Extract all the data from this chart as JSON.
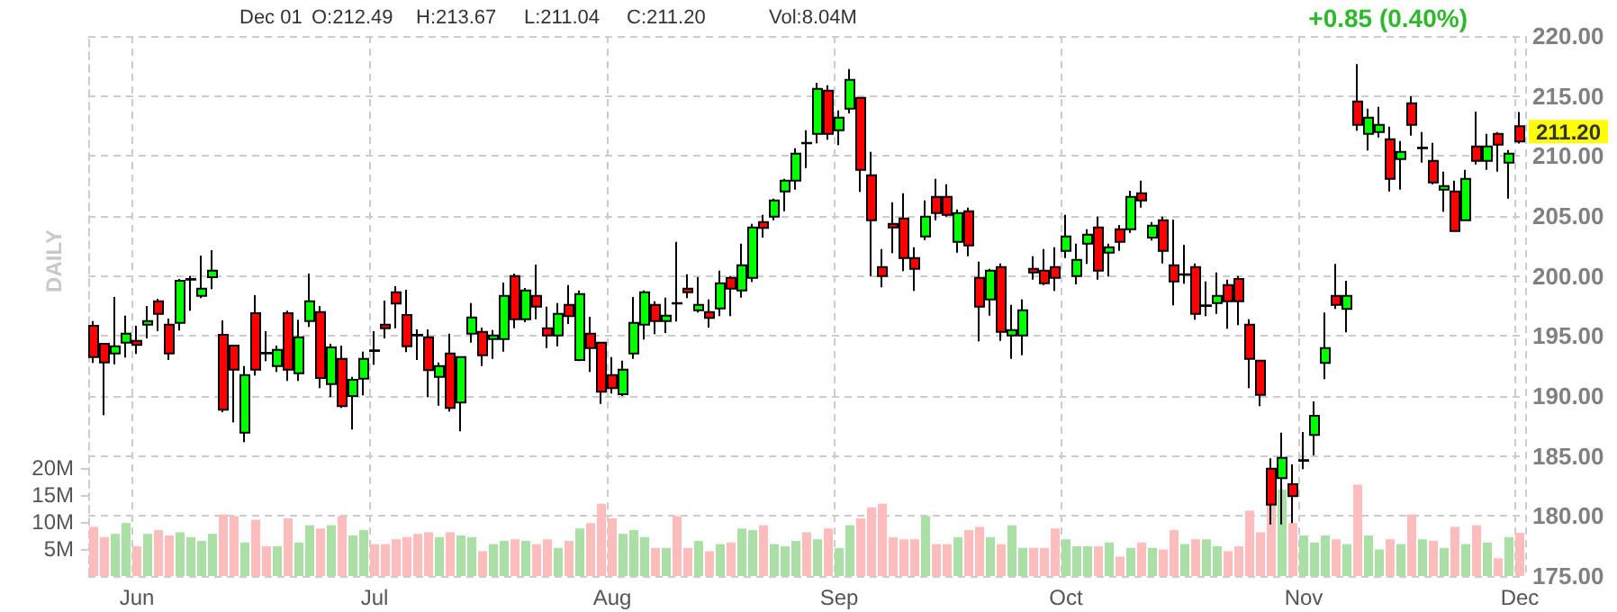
{
  "chart_data": {
    "type": "candlestick",
    "categories": [
      null,
      null,
      null,
      null,
      "Jun",
      null,
      null,
      null,
      null,
      null,
      null,
      null,
      null,
      null,
      null,
      null,
      null,
      null,
      null,
      null,
      null,
      null,
      null,
      null,
      null,
      null,
      "Jul",
      null,
      null,
      null,
      null,
      null,
      null,
      null,
      null,
      null,
      null,
      null,
      null,
      null,
      null,
      null,
      null,
      null,
      null,
      null,
      null,
      null,
      "Aug",
      null,
      null,
      null,
      null,
      null,
      null,
      null,
      null,
      null,
      null,
      null,
      null,
      null,
      null,
      null,
      null,
      null,
      null,
      null,
      null,
      "Sep",
      null,
      null,
      null,
      null,
      null,
      null,
      null,
      null,
      null,
      null,
      null,
      null,
      null,
      null,
      null,
      null,
      null,
      null,
      null,
      null,
      "Oct",
      null,
      null,
      null,
      null,
      null,
      null,
      null,
      null,
      null,
      null,
      null,
      null,
      null,
      null,
      null,
      null,
      null,
      null,
      null,
      null,
      null,
      "Nov",
      null,
      null,
      null,
      null,
      null,
      null,
      null,
      null,
      null,
      null,
      null,
      null,
      null,
      null,
      null,
      null,
      null,
      null,
      null,
      "Dec"
    ],
    "series": [
      {
        "ohlc": [
          [
            195.85,
            196.25,
            192.75,
            193.25
          ],
          [
            194.35,
            194.35,
            188.4,
            192.8
          ],
          [
            193.55,
            198.25,
            192.65,
            194.15
          ],
          [
            194.45,
            196.7,
            193.2,
            195.2
          ],
          [
            194.6,
            195.85,
            193.5,
            194.25
          ],
          [
            195.95,
            197.5,
            194.8,
            196.25
          ],
          [
            197.9,
            198.1,
            195.4,
            196.85
          ],
          [
            195.95,
            196.45,
            193,
            193.55
          ],
          [
            196.1,
            199.75,
            195.45,
            199.6
          ],
          [
            199.7,
            200,
            197.1,
            199.75
          ],
          [
            198.35,
            201.7,
            198.15,
            198.95
          ],
          [
            199.9,
            202.15,
            198.9,
            200.45
          ],
          [
            195.1,
            196.3,
            188.65,
            188.85
          ],
          [
            194.2,
            194.2,
            187.8,
            192.2
          ],
          [
            186.95,
            192.5,
            186.15,
            191.75
          ],
          [
            196.9,
            198.4,
            191.7,
            192.2
          ],
          [
            193.6,
            195.4,
            192.9,
            193.55
          ],
          [
            192.5,
            194.2,
            192,
            193.85
          ],
          [
            196.9,
            197.1,
            191.25,
            192.2
          ],
          [
            191.9,
            196.35,
            191.25,
            194.9
          ],
          [
            196.25,
            200.2,
            195.75,
            197.9
          ],
          [
            197,
            197.5,
            190.65,
            191.5
          ],
          [
            191,
            194.35,
            189.9,
            194.05
          ],
          [
            193.1,
            194.2,
            189,
            189.15
          ],
          [
            190,
            191.6,
            187.2,
            191.35
          ],
          [
            191.45,
            193.7,
            190.05,
            193.1
          ],
          [
            193.8,
            195.4,
            192.6,
            193.75
          ],
          [
            195.95,
            197.95,
            194.8,
            195.65
          ],
          [
            198.65,
            199.15,
            195.65,
            197.7
          ],
          [
            196.75,
            198.85,
            193.65,
            194.15
          ],
          [
            195.1,
            195.55,
            193,
            195.05
          ],
          [
            194.9,
            195.55,
            189.9,
            192.15
          ],
          [
            191.6,
            192.8,
            189.2,
            192.5
          ],
          [
            193.55,
            195.2,
            188.7,
            189
          ],
          [
            189.45,
            193.25,
            187.05,
            193.25
          ],
          [
            195.2,
            197.75,
            194.45,
            196.55
          ],
          [
            195.35,
            195.7,
            192.5,
            193.4
          ],
          [
            194.75,
            195.5,
            193.1,
            195.05
          ],
          [
            194.75,
            199.45,
            193.7,
            198.35
          ],
          [
            200,
            200.2,
            195.65,
            196.4
          ],
          [
            196.4,
            199,
            196.15,
            198.8
          ],
          [
            198.35,
            200.95,
            196.4,
            197.45
          ],
          [
            195.65,
            197.45,
            194,
            195.05
          ],
          [
            195.05,
            197.75,
            194.15,
            196.85
          ],
          [
            197.6,
            199.25,
            196,
            196.65
          ],
          [
            193,
            198.8,
            192.9,
            198.5
          ],
          [
            195.2,
            196.6,
            192,
            194
          ],
          [
            194.45,
            194.45,
            189.35,
            190.35
          ],
          [
            191.75,
            193.25,
            190.2,
            190.65
          ],
          [
            190.15,
            192.95,
            190,
            192.2
          ],
          [
            193.55,
            198.25,
            193.1,
            196.1
          ],
          [
            195.95,
            198.8,
            194.7,
            198.65
          ],
          [
            197.6,
            197.9,
            195.15,
            196.25
          ],
          [
            196.25,
            198.2,
            195.25,
            196.7
          ],
          [
            197.75,
            202.85,
            196.2,
            197.7
          ],
          [
            198.95,
            200.15,
            198.15,
            198.65
          ],
          [
            197.15,
            199.9,
            196.95,
            197.6
          ],
          [
            197,
            198.05,
            195.7,
            196.5
          ],
          [
            197.3,
            200.45,
            196.65,
            199.4
          ],
          [
            199.85,
            200,
            196.65,
            198.95
          ],
          [
            198.8,
            202.7,
            198.2,
            200.9
          ],
          [
            199.85,
            204.35,
            199.5,
            204.05
          ],
          [
            204.5,
            205.1,
            203.2,
            204
          ],
          [
            204.95,
            206.45,
            204.65,
            206.3
          ],
          [
            207.05,
            208.1,
            205.4,
            207.95
          ],
          [
            207.95,
            210.65,
            207.2,
            210.2
          ],
          [
            211.1,
            212.15,
            209,
            211.05
          ],
          [
            211.85,
            216.1,
            211.05,
            215.6
          ],
          [
            215.45,
            215.9,
            211.35,
            211.85
          ],
          [
            212.15,
            213.8,
            210.9,
            213.2
          ],
          [
            213.95,
            217.25,
            213.55,
            216.35
          ],
          [
            214.85,
            214.85,
            207,
            208.85
          ],
          [
            208.4,
            210.35,
            200,
            204.65
          ],
          [
            200.75,
            202.25,
            199.05,
            200
          ],
          [
            204.35,
            206.15,
            201.9,
            204.05
          ],
          [
            204.8,
            206.9,
            200.4,
            201.5
          ],
          [
            201.5,
            202.4,
            198.75,
            200.6
          ],
          [
            203.3,
            206.3,
            203,
            204.95
          ],
          [
            206.6,
            208.1,
            204.65,
            205.25
          ],
          [
            206.6,
            207.65,
            204.95,
            205.1
          ],
          [
            202.85,
            205.55,
            201.95,
            205.25
          ],
          [
            205.4,
            205.7,
            201.65,
            202.55
          ],
          [
            199.85,
            201.2,
            194.55,
            197.45
          ],
          [
            198.05,
            200.6,
            196.7,
            200.45
          ],
          [
            200.75,
            201.05,
            194.6,
            195.35
          ],
          [
            195.05,
            197.6,
            193.1,
            195.5
          ],
          [
            195.05,
            198.05,
            193.4,
            197.15
          ],
          [
            200.6,
            201.65,
            199.7,
            200.3
          ],
          [
            200.45,
            202.25,
            199.25,
            199.4
          ],
          [
            200.75,
            202.4,
            198.75,
            199.85
          ],
          [
            202.1,
            205.1,
            201.5,
            203.3
          ],
          [
            200,
            202.7,
            199.3,
            201.35
          ],
          [
            202.7,
            203.9,
            201,
            203.45
          ],
          [
            204.05,
            204.95,
            199.7,
            200.45
          ],
          [
            201.95,
            202.7,
            199.95,
            202.4
          ],
          [
            203.9,
            204.25,
            202.1,
            202.85
          ],
          [
            203.9,
            207.1,
            203.6,
            206.6
          ],
          [
            206.9,
            207.95,
            205.7,
            206.3
          ],
          [
            203.2,
            204.5,
            202.95,
            204.2
          ],
          [
            204.65,
            204.95,
            201.05,
            202.1
          ],
          [
            200.9,
            204.7,
            197.55,
            199.55
          ],
          [
            200.1,
            202.6,
            199.35,
            200.15
          ],
          [
            200.75,
            201.05,
            196.35,
            196.85
          ],
          [
            197.5,
            199.55,
            196.65,
            197.55
          ],
          [
            197.75,
            200.3,
            196.85,
            198.35
          ],
          [
            199.25,
            199.7,
            195.6,
            197.9
          ],
          [
            199.75,
            200,
            195.9,
            197.9
          ],
          [
            195.95,
            196.4,
            190.65,
            193.1
          ],
          [
            192.95,
            192.95,
            189.15,
            190.1
          ],
          [
            183.95,
            184.8,
            179.3,
            180.95
          ],
          [
            183.15,
            186.95,
            179.3,
            184.85
          ],
          [
            182.65,
            184.3,
            179.4,
            181.65
          ],
          [
            184.6,
            187,
            183.9,
            184.65
          ],
          [
            186.75,
            189.55,
            185.05,
            188.35
          ],
          [
            192.75,
            196.95,
            191.4,
            194
          ],
          [
            198.35,
            201,
            197.25,
            197.6
          ],
          [
            197.25,
            199.6,
            195.3,
            198.35
          ],
          [
            214.55,
            217.65,
            212.1,
            212.6
          ],
          [
            211.85,
            213.95,
            210.45,
            213.2
          ],
          [
            212,
            214.1,
            211.55,
            212.6
          ],
          [
            211.4,
            212.45,
            207.05,
            208.1
          ],
          [
            209.75,
            211.25,
            207.2,
            210.35
          ],
          [
            214.4,
            215,
            211.7,
            212.6
          ],
          [
            210.65,
            212,
            209.45,
            210.7
          ],
          [
            209.6,
            211.1,
            207.65,
            207.8
          ],
          [
            207.2,
            208.7,
            205.35,
            207.5
          ],
          [
            207.05,
            207.95,
            203.75,
            203.75
          ],
          [
            204.65,
            208.85,
            204.65,
            208.1
          ],
          [
            210.8,
            213.7,
            209.3,
            209.6
          ],
          [
            209.6,
            211.85,
            208.85,
            210.8
          ],
          [
            211.85,
            212,
            208.7,
            210.95
          ],
          [
            209.45,
            210.5,
            206.45,
            210.2
          ],
          [
            212.49,
            213.67,
            211.04,
            211.2
          ]
        ],
        "colors": [
          "#ff0000",
          "#ff0000",
          "#00ff00",
          "#00ff00",
          "#ff0000",
          "#00ff00",
          "#ff0000",
          "#ff0000",
          "#00ff00",
          "#00ff00",
          "#00ff00",
          "#00ff00",
          "#ff0000",
          "#ff0000",
          "#00ff00",
          "#ff0000",
          "#ff0000",
          "#00ff00",
          "#ff0000",
          "#00ff00",
          "#00ff00",
          "#ff0000",
          "#00ff00",
          "#ff0000",
          "#00ff00",
          "#00ff00",
          "#ff0000",
          "#ff0000",
          "#ff0000",
          "#ff0000",
          "#ff0000",
          "#ff0000",
          "#00ff00",
          "#ff0000",
          "#00ff00",
          "#00ff00",
          "#ff0000",
          "#00ff00",
          "#00ff00",
          "#ff0000",
          "#00ff00",
          "#ff0000",
          "#ff0000",
          "#00ff00",
          "#ff0000",
          "#00ff00",
          "#ff0000",
          "#ff0000",
          "#ff0000",
          "#00ff00",
          "#00ff00",
          "#00ff00",
          "#ff0000",
          "#00ff00",
          "#ff0000",
          "#ff0000",
          "#00ff00",
          "#ff0000",
          "#00ff00",
          "#ff0000",
          "#00ff00",
          "#00ff00",
          "#ff0000",
          "#00ff00",
          "#00ff00",
          "#00ff00",
          "#ff0000",
          "#00ff00",
          "#ff0000",
          "#00ff00",
          "#00ff00",
          "#ff0000",
          "#ff0000",
          "#ff0000",
          "#ff0000",
          "#ff0000",
          "#ff0000",
          "#00ff00",
          "#ff0000",
          "#ff0000",
          "#00ff00",
          "#ff0000",
          "#ff0000",
          "#00ff00",
          "#ff0000",
          "#00ff00",
          "#00ff00",
          "#ff0000",
          "#ff0000",
          "#ff0000",
          "#00ff00",
          "#00ff00",
          "#00ff00",
          "#ff0000",
          "#00ff00",
          "#ff0000",
          "#00ff00",
          "#ff0000",
          "#00ff00",
          "#ff0000",
          "#ff0000",
          "#00ff00",
          "#ff0000",
          "#00ff00",
          "#00ff00",
          "#ff0000",
          "#ff0000",
          "#ff0000",
          "#ff0000",
          "#ff0000",
          "#00ff00",
          "#ff0000",
          "#00ff00",
          "#00ff00",
          "#00ff00",
          "#ff0000",
          "#00ff00",
          "#ff0000",
          "#00ff00",
          "#00ff00",
          "#ff0000",
          "#00ff00",
          "#ff0000",
          "#00ff00",
          "#ff0000",
          "#00ff00",
          "#ff0000",
          "#00ff00",
          "#ff0000",
          "#00ff00",
          "#ff0000",
          "#00ff00",
          "#ff0000"
        ]
      },
      {
        "type": "bar",
        "axis": "y2",
        "values": [
          9.1,
          7.2,
          7.8,
          9.8,
          5.5,
          7.8,
          8.5,
          7.5,
          8.1,
          7.2,
          6.5,
          7.8,
          11.4,
          11.1,
          6.2,
          10.4,
          5.5,
          5.5,
          10.7,
          6.2,
          9.4,
          8.8,
          9.4,
          11.1,
          7.5,
          8.5,
          5.9,
          5.9,
          6.8,
          7.2,
          7.8,
          8.1,
          7.2,
          8.1,
          7.5,
          7.2,
          4.6,
          5.9,
          6.5,
          6.8,
          6.5,
          5.9,
          6.8,
          5.2,
          6.5,
          8.8,
          9.8,
          13.4,
          10.7,
          7.8,
          8.5,
          7.2,
          5.2,
          5.2,
          11.1,
          5.2,
          6.5,
          4.6,
          5.9,
          6.2,
          8.8,
          8.5,
          9.4,
          5.9,
          5.5,
          6.5,
          8.1,
          6.8,
          8.8,
          5.2,
          9.4,
          10.7,
          12.7,
          13.4,
          7.2,
          6.8,
          6.8,
          11.1,
          5.9,
          5.9,
          7.2,
          8.5,
          9.1,
          7.2,
          5.9,
          9.4,
          5.2,
          5.2,
          5.2,
          8.8,
          6.8,
          5.5,
          5.5,
          5.5,
          6.2,
          3.6,
          5.2,
          6.2,
          5.2,
          4.9,
          8.5,
          5.9,
          6.8,
          6.8,
          5.5,
          4.6,
          5.5,
          12.1,
          8.1,
          13,
          16,
          9.8,
          7.5,
          6.2,
          7.5,
          6.8,
          5.9,
          16.9,
          7.5,
          4.9,
          6.8,
          5.9,
          11.4,
          6.8,
          6.5,
          5.2,
          9.1,
          5.9,
          9.4,
          6.2,
          3.3,
          7.2,
          8.0
        ],
        "colors": [
          "#ffbcbc",
          "#ffbcbc",
          "#aadfa5",
          "#aadfa5",
          "#ffbcbc",
          "#aadfa5",
          "#ffbcbc",
          "#ffbcbc",
          "#aadfa5",
          "#aadfa5",
          "#aadfa5",
          "#aadfa5",
          "#ffbcbc",
          "#ffbcbc",
          "#aadfa5",
          "#ffbcbc",
          "#ffbcbc",
          "#aadfa5",
          "#ffbcbc",
          "#aadfa5",
          "#aadfa5",
          "#ffbcbc",
          "#aadfa5",
          "#ffbcbc",
          "#aadfa5",
          "#aadfa5",
          "#ffbcbc",
          "#ffbcbc",
          "#ffbcbc",
          "#ffbcbc",
          "#ffbcbc",
          "#ffbcbc",
          "#aadfa5",
          "#ffbcbc",
          "#aadfa5",
          "#aadfa5",
          "#ffbcbc",
          "#aadfa5",
          "#aadfa5",
          "#ffbcbc",
          "#aadfa5",
          "#ffbcbc",
          "#ffbcbc",
          "#aadfa5",
          "#ffbcbc",
          "#aadfa5",
          "#ffbcbc",
          "#ffbcbc",
          "#ffbcbc",
          "#aadfa5",
          "#aadfa5",
          "#aadfa5",
          "#ffbcbc",
          "#aadfa5",
          "#ffbcbc",
          "#ffbcbc",
          "#aadfa5",
          "#ffbcbc",
          "#aadfa5",
          "#ffbcbc",
          "#aadfa5",
          "#aadfa5",
          "#ffbcbc",
          "#aadfa5",
          "#aadfa5",
          "#aadfa5",
          "#ffbcbc",
          "#aadfa5",
          "#ffbcbc",
          "#aadfa5",
          "#aadfa5",
          "#ffbcbc",
          "#ffbcbc",
          "#ffbcbc",
          "#ffbcbc",
          "#ffbcbc",
          "#ffbcbc",
          "#aadfa5",
          "#ffbcbc",
          "#ffbcbc",
          "#aadfa5",
          "#ffbcbc",
          "#ffbcbc",
          "#aadfa5",
          "#ffbcbc",
          "#aadfa5",
          "#aadfa5",
          "#ffbcbc",
          "#ffbcbc",
          "#ffbcbc",
          "#aadfa5",
          "#aadfa5",
          "#aadfa5",
          "#ffbcbc",
          "#aadfa5",
          "#ffbcbc",
          "#aadfa5",
          "#ffbcbc",
          "#aadfa5",
          "#ffbcbc",
          "#ffbcbc",
          "#aadfa5",
          "#ffbcbc",
          "#aadfa5",
          "#aadfa5",
          "#ffbcbc",
          "#ffbcbc",
          "#ffbcbc",
          "#ffbcbc",
          "#ffbcbc",
          "#aadfa5",
          "#ffbcbc",
          "#aadfa5",
          "#aadfa5",
          "#aadfa5",
          "#ffbcbc",
          "#aadfa5",
          "#ffbcbc",
          "#aadfa5",
          "#aadfa5",
          "#ffbcbc",
          "#aadfa5",
          "#ffbcbc",
          "#aadfa5",
          "#ffbcbc",
          "#aadfa5",
          "#ffbcbc",
          "#aadfa5",
          "#ffbcbc",
          "#aadfa5",
          "#ffbcbc",
          "#aadfa5",
          "#ffbcbc"
        ]
      }
    ],
    "ylim": [
      175,
      220
    ],
    "yticks": [
      {
        "value": 175,
        "label": "175.00"
      },
      {
        "value": 180,
        "label": "180.00"
      },
      {
        "value": 185,
        "label": "185.00"
      },
      {
        "value": 190,
        "label": "190.00"
      },
      {
        "value": 195,
        "label": "195.00"
      },
      {
        "value": 200,
        "label": "200.00"
      },
      {
        "value": 205,
        "label": "205.00"
      },
      {
        "value": 210,
        "label": "210.00"
      },
      {
        "value": 215,
        "label": "215.00"
      },
      {
        "value": 220,
        "label": "220.00"
      }
    ],
    "y2lim": [
      0,
      100
    ],
    "y2ticks": [
      {
        "value": 5,
        "label": "5M"
      },
      {
        "value": 10,
        "label": "10M"
      },
      {
        "value": 15,
        "label": "15M"
      },
      {
        "value": 20,
        "label": "20M"
      }
    ],
    "grid": true,
    "annotations": [
      "Dec 01",
      "O:212.49",
      "H:213.67",
      "L:211.04",
      "C:211.20",
      "Vol:8.04M",
      "+0.85 (0.40%)",
      "DAILY",
      {
        "text": "211.20",
        "x": "Dec",
        "y": 211.2
      }
    ]
  }
}
